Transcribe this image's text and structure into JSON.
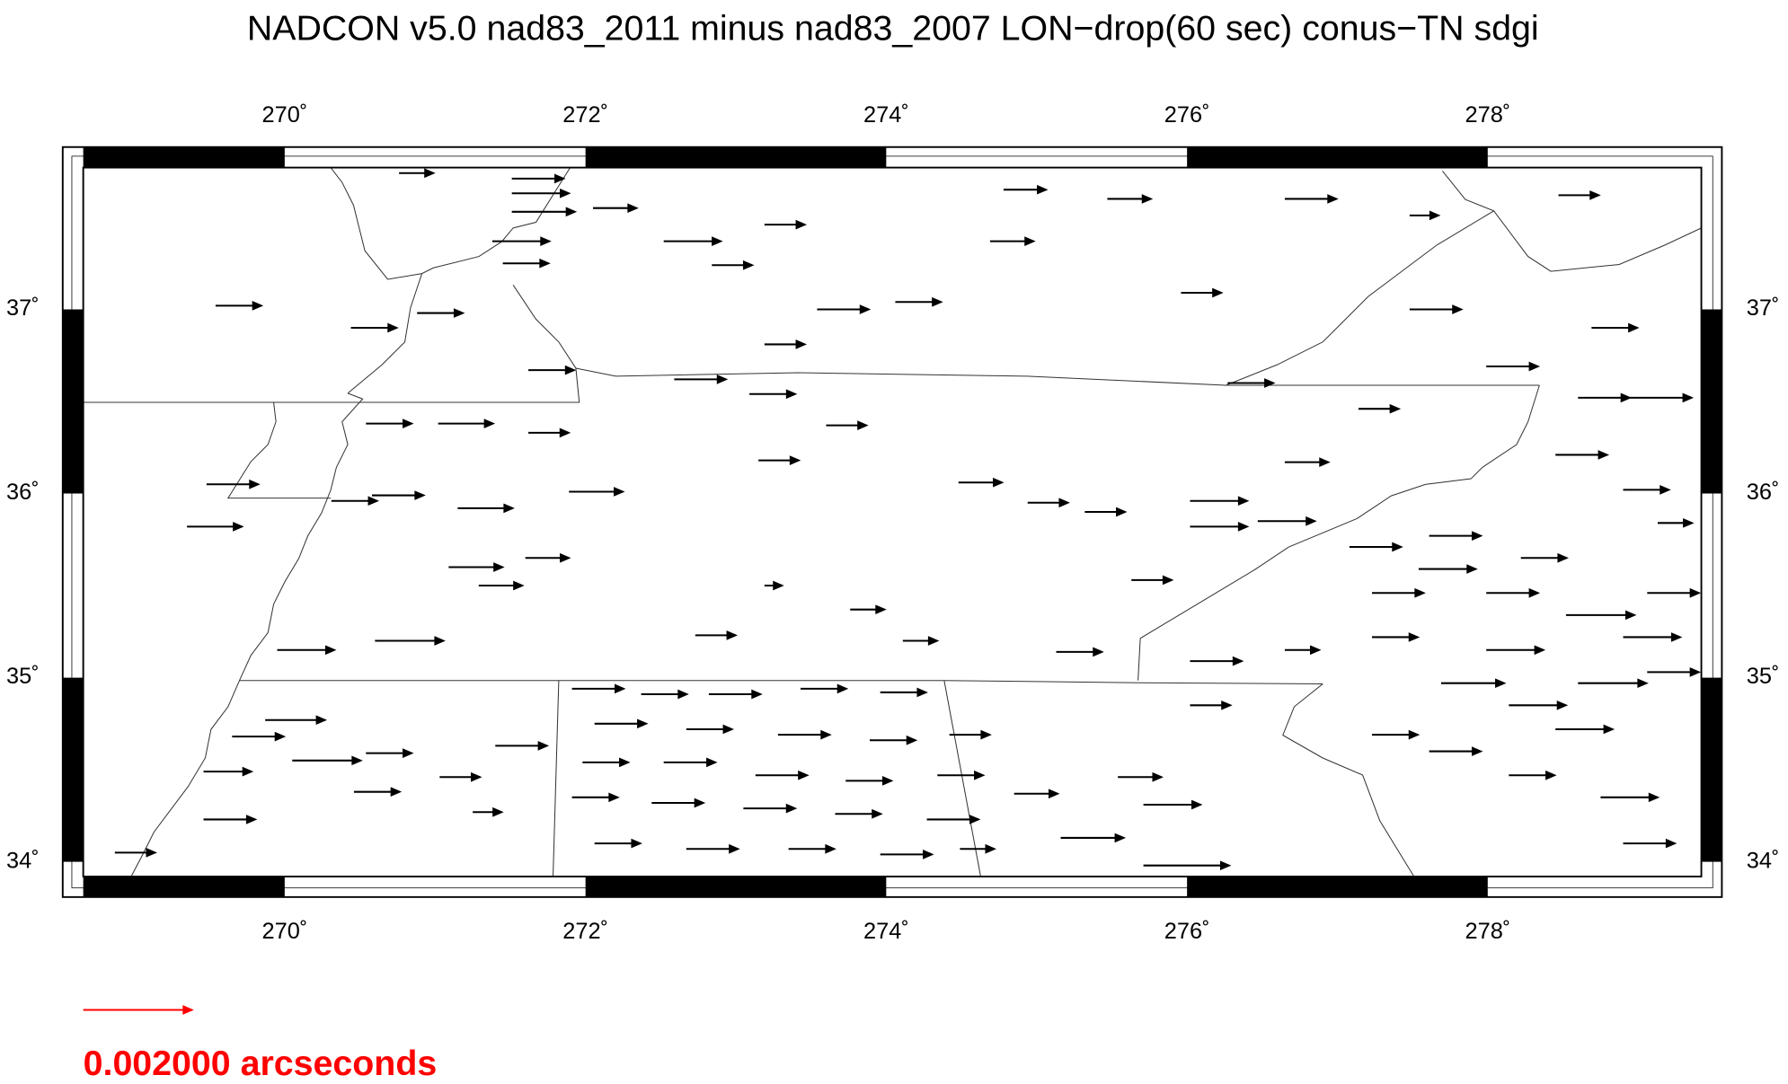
{
  "chart_data": {
    "type": "vector",
    "title": "NADCON v5.0 nad83_2011 minus nad83_2007 LON−drop(60 sec) conus−TN sdgi",
    "xlim": [
      268.66,
      279.42
    ],
    "ylim": [
      33.92,
      37.77
    ],
    "xticks": [
      {
        "value": 270,
        "label": "270˚"
      },
      {
        "value": 272,
        "label": "272˚"
      },
      {
        "value": 274,
        "label": "274˚"
      },
      {
        "value": 276,
        "label": "276˚"
      },
      {
        "value": 278,
        "label": "278˚"
      }
    ],
    "yticks": [
      {
        "value": 34,
        "label": "34˚"
      },
      {
        "value": 35,
        "label": "35˚"
      },
      {
        "value": 36,
        "label": "36˚"
      },
      {
        "value": 37,
        "label": "37˚"
      }
    ],
    "color": "#000000",
    "x": [
      269.54,
      270.44,
      270.88,
      270.76,
      271.51,
      271.51,
      271.51,
      271.38,
      271.45,
      272.05,
      272.52,
      272.84,
      273.19,
      274.78,
      275.47,
      276.65,
      278.47,
      277.48,
      274.69,
      275.96,
      277.48,
      278.69,
      277.99,
      274.06,
      273.54,
      273.19,
      272.59,
      273.09,
      271.62,
      270.54,
      271.02,
      271.62,
      273.6,
      273.15,
      274.48,
      274.94,
      275.32,
      276.65,
      277.14,
      276.27,
      271.89,
      269.35,
      269.48,
      270.31,
      270.58,
      271.15,
      271.09,
      271.6,
      271.29,
      273.19,
      273.76,
      272.73,
      274.11,
      270.6,
      269.95,
      275.63,
      275.13,
      276.02,
      276.02,
      276.47,
      276.02,
      276.02,
      276.65,
      269.87,
      269.65,
      269.46,
      270.05,
      270.54,
      271.03,
      271.4,
      271.25,
      270.46,
      269.46,
      268.87,
      274.85,
      275.54,
      275.71,
      275.16,
      275.71,
      271.91,
      272.37,
      272.82,
      273.43,
      273.96,
      272.06,
      272.67,
      273.28,
      273.89,
      274.42,
      271.98,
      272.52,
      273.13,
      273.73,
      274.34,
      271.91,
      272.44,
      273.05,
      273.66,
      274.27,
      272.06,
      272.67,
      273.35,
      273.96,
      274.49,
      277.08,
      277.54,
      277.99,
      278.52,
      278.9,
      277.23,
      277.69,
      278.14,
      278.6,
      279.06,
      277.23,
      277.61,
      278.14,
      278.75,
      278.9,
      278.6,
      278.9,
      278.45,
      278.9,
      279.13,
      277.61,
      278.22,
      277.23,
      279.06,
      277.99,
      278.45
    ],
    "y": [
      37.02,
      36.9,
      36.98,
      37.74,
      37.71,
      37.63,
      37.53,
      37.37,
      37.25,
      37.55,
      37.37,
      37.24,
      37.46,
      37.65,
      37.6,
      37.6,
      37.62,
      37.51,
      37.37,
      37.09,
      37.0,
      36.9,
      36.69,
      37.04,
      37.0,
      36.81,
      36.62,
      36.54,
      36.67,
      36.38,
      36.38,
      36.33,
      36.37,
      36.18,
      36.06,
      35.95,
      35.9,
      36.17,
      36.46,
      36.6,
      36.01,
      35.82,
      36.05,
      35.96,
      35.99,
      35.92,
      35.6,
      35.65,
      35.5,
      35.5,
      35.37,
      35.23,
      35.2,
      35.2,
      35.15,
      35.53,
      35.14,
      35.96,
      35.82,
      35.85,
      34.85,
      35.09,
      35.15,
      34.77,
      34.68,
      34.49,
      34.55,
      34.59,
      34.46,
      34.63,
      34.27,
      34.38,
      34.23,
      34.05,
      34.37,
      34.46,
      34.31,
      34.13,
      33.98,
      34.94,
      34.91,
      34.91,
      34.94,
      34.92,
      34.75,
      34.72,
      34.69,
      34.66,
      34.69,
      34.54,
      34.54,
      34.47,
      34.44,
      34.47,
      34.35,
      34.32,
      34.29,
      34.26,
      34.23,
      34.1,
      34.07,
      34.07,
      34.04,
      34.07,
      35.71,
      35.59,
      35.46,
      35.34,
      35.22,
      35.22,
      34.97,
      34.85,
      34.97,
      35.03,
      34.69,
      34.6,
      34.47,
      34.35,
      34.1,
      36.52,
      36.52,
      36.21,
      36.02,
      35.84,
      35.77,
      35.65,
      35.46,
      35.46,
      35.15,
      34.72
    ],
    "values": [
      0.00084,
      0.00084,
      0.00084,
      0.00063,
      0.00095,
      0.00105,
      0.00116,
      0.00105,
      0.00084,
      0.0008,
      0.00105,
      0.00074,
      0.00074,
      0.00078,
      0.0008,
      0.00095,
      0.00074,
      0.00053,
      0.0008,
      0.00074,
      0.00095,
      0.00084,
      0.00095,
      0.00084,
      0.00095,
      0.00074,
      0.00095,
      0.00084,
      0.00084,
      0.00084,
      0.00101,
      0.00074,
      0.00074,
      0.00074,
      0.0008,
      0.00074,
      0.00074,
      0.0008,
      0.00074,
      0.00084,
      0.00099,
      0.00101,
      0.00095,
      0.00084,
      0.00095,
      0.00101,
      0.00099,
      0.0008,
      0.0008,
      0.00032,
      0.00063,
      0.00074,
      0.00063,
      0.00126,
      0.00105,
      0.00074,
      0.00084,
      0.00105,
      0.00105,
      0.00105,
      0.00074,
      0.00095,
      0.00063,
      0.0011,
      0.00095,
      0.00088,
      0.00126,
      0.00084,
      0.00074,
      0.00095,
      0.00053,
      0.00084,
      0.00095,
      0.00074,
      0.0008,
      0.0008,
      0.00105,
      0.00116,
      0.00158,
      0.00095,
      0.00084,
      0.00095,
      0.00084,
      0.00084,
      0.00095,
      0.00084,
      0.00095,
      0.00084,
      0.00074,
      0.00084,
      0.00095,
      0.00095,
      0.00084,
      0.00084,
      0.00084,
      0.00095,
      0.00095,
      0.00084,
      0.00095,
      0.00084,
      0.00095,
      0.00084,
      0.00095,
      0.00063,
      0.00095,
      0.00105,
      0.00095,
      0.00126,
      0.00105,
      0.00084,
      0.00116,
      0.00105,
      0.00126,
      0.00095,
      0.00084,
      0.00095,
      0.00084,
      0.00105,
      0.00095,
      0.00095,
      0.00126,
      0.00095,
      0.00084,
      0.00063,
      0.00095,
      0.00084,
      0.00095,
      0.00095,
      0.00105,
      0.00105
    ],
    "legend": {
      "value": 0.002,
      "label": "0.002000 arcseconds",
      "color": "#ff0000"
    }
  }
}
